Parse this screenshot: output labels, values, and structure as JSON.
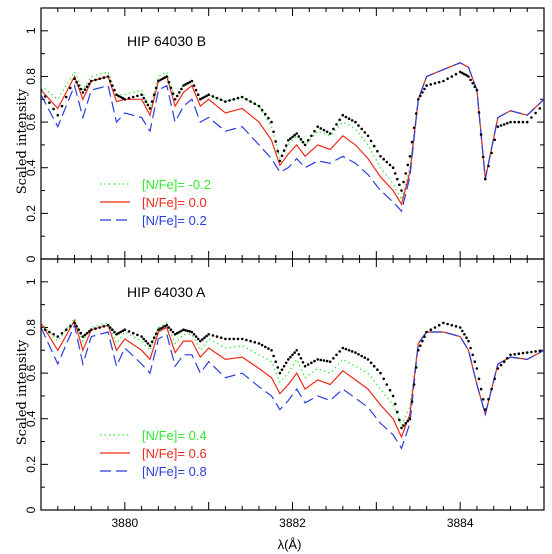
{
  "chart_data": [
    {
      "type": "line",
      "title": "HIP 64030 B",
      "xlabel": "",
      "ylabel": "Scaled intensity",
      "xlim": [
        3879.0,
        3885.0
      ],
      "ylim": [
        0.0,
        1.1
      ],
      "xticks": [],
      "yticks": [
        "0",
        "0.2",
        "0.4",
        "0.6",
        "0.8",
        "1"
      ],
      "legend_position": "lower-left",
      "observed": {
        "style": "dotted",
        "color": "#000000",
        "x": [
          3879.0,
          3879.2,
          3879.4,
          3879.5,
          3879.6,
          3879.8,
          3879.9,
          3880.0,
          3880.2,
          3880.3,
          3880.4,
          3880.5,
          3880.6,
          3880.7,
          3880.8,
          3880.9,
          3881.0,
          3881.2,
          3881.4,
          3881.6,
          3881.75,
          3881.85,
          3881.95,
          3882.05,
          3882.15,
          3882.3,
          3882.45,
          3882.6,
          3882.75,
          3882.9,
          3883.05,
          3883.2,
          3883.3,
          3883.4,
          3883.5,
          3883.6,
          3883.8,
          3884.0,
          3884.1,
          3884.2,
          3884.3,
          3884.45,
          3884.6,
          3884.8,
          3885.0
        ],
        "y": [
          0.74,
          0.63,
          0.79,
          0.73,
          0.78,
          0.8,
          0.72,
          0.7,
          0.72,
          0.66,
          0.78,
          0.8,
          0.7,
          0.76,
          0.78,
          0.7,
          0.72,
          0.69,
          0.71,
          0.67,
          0.6,
          0.43,
          0.52,
          0.55,
          0.5,
          0.58,
          0.55,
          0.63,
          0.6,
          0.54,
          0.45,
          0.4,
          0.3,
          0.45,
          0.7,
          0.76,
          0.78,
          0.82,
          0.8,
          0.74,
          0.35,
          0.58,
          0.6,
          0.6,
          0.68
        ]
      },
      "series": [
        {
          "name": "[N/Fe]= -0.2",
          "style": "dotted",
          "color": "#33e833",
          "x": [
            3879.0,
            3879.2,
            3879.4,
            3879.5,
            3879.6,
            3879.8,
            3879.9,
            3880.0,
            3880.2,
            3880.3,
            3880.4,
            3880.5,
            3880.6,
            3880.7,
            3880.8,
            3880.9,
            3881.0,
            3881.2,
            3881.4,
            3881.6,
            3881.75,
            3881.85,
            3881.95,
            3882.05,
            3882.15,
            3882.3,
            3882.45,
            3882.6,
            3882.75,
            3882.9,
            3883.05,
            3883.2,
            3883.3,
            3883.4,
            3883.5,
            3883.6,
            3883.8,
            3884.0,
            3884.1,
            3884.2,
            3884.3,
            3884.45,
            3884.6,
            3884.8,
            3885.0
          ],
          "y": [
            0.76,
            0.7,
            0.82,
            0.74,
            0.8,
            0.82,
            0.72,
            0.72,
            0.74,
            0.66,
            0.8,
            0.82,
            0.7,
            0.76,
            0.78,
            0.7,
            0.72,
            0.69,
            0.71,
            0.67,
            0.58,
            0.44,
            0.5,
            0.54,
            0.5,
            0.56,
            0.54,
            0.6,
            0.57,
            0.5,
            0.4,
            0.33,
            0.26,
            0.4,
            0.7,
            0.8,
            0.83,
            0.86,
            0.84,
            0.74,
            0.36,
            0.62,
            0.65,
            0.63,
            0.7
          ]
        },
        {
          "name": "[N/Fe]= 0.0",
          "style": "solid",
          "color": "#ee2a1a",
          "x": [
            3879.0,
            3879.2,
            3879.4,
            3879.5,
            3879.6,
            3879.8,
            3879.9,
            3880.0,
            3880.2,
            3880.3,
            3880.4,
            3880.5,
            3880.6,
            3880.7,
            3880.8,
            3880.9,
            3881.0,
            3881.2,
            3881.4,
            3881.6,
            3881.75,
            3881.85,
            3881.95,
            3882.05,
            3882.15,
            3882.3,
            3882.45,
            3882.6,
            3882.75,
            3882.9,
            3883.05,
            3883.2,
            3883.3,
            3883.4,
            3883.5,
            3883.6,
            3883.8,
            3884.0,
            3884.1,
            3884.2,
            3884.3,
            3884.45,
            3884.6,
            3884.8,
            3885.0
          ],
          "y": [
            0.74,
            0.66,
            0.8,
            0.7,
            0.78,
            0.8,
            0.69,
            0.7,
            0.7,
            0.63,
            0.78,
            0.8,
            0.67,
            0.73,
            0.76,
            0.67,
            0.7,
            0.64,
            0.66,
            0.6,
            0.52,
            0.41,
            0.46,
            0.5,
            0.45,
            0.5,
            0.48,
            0.54,
            0.5,
            0.44,
            0.36,
            0.3,
            0.24,
            0.38,
            0.7,
            0.8,
            0.83,
            0.86,
            0.84,
            0.74,
            0.35,
            0.62,
            0.65,
            0.63,
            0.7
          ]
        },
        {
          "name": "[N/Fe]= 0.2",
          "style": "dashed",
          "color": "#2a3ee0",
          "x": [
            3879.0,
            3879.2,
            3879.4,
            3879.5,
            3879.6,
            3879.8,
            3879.9,
            3880.0,
            3880.2,
            3880.3,
            3880.4,
            3880.5,
            3880.6,
            3880.7,
            3880.8,
            3880.9,
            3881.0,
            3881.2,
            3881.4,
            3881.6,
            3881.75,
            3881.85,
            3881.95,
            3882.05,
            3882.15,
            3882.3,
            3882.45,
            3882.6,
            3882.75,
            3882.9,
            3883.05,
            3883.2,
            3883.3,
            3883.4,
            3883.5,
            3883.6,
            3883.8,
            3884.0,
            3884.1,
            3884.2,
            3884.3,
            3884.45,
            3884.6,
            3884.8,
            3885.0
          ],
          "y": [
            0.72,
            0.58,
            0.76,
            0.62,
            0.74,
            0.76,
            0.6,
            0.64,
            0.62,
            0.56,
            0.74,
            0.76,
            0.6,
            0.67,
            0.7,
            0.6,
            0.62,
            0.56,
            0.58,
            0.5,
            0.44,
            0.38,
            0.4,
            0.44,
            0.4,
            0.43,
            0.42,
            0.45,
            0.42,
            0.37,
            0.3,
            0.25,
            0.21,
            0.36,
            0.7,
            0.8,
            0.83,
            0.86,
            0.84,
            0.74,
            0.35,
            0.62,
            0.65,
            0.63,
            0.7
          ]
        }
      ]
    },
    {
      "type": "line",
      "title": "HIP 64030 A",
      "xlabel": "λ(Å)",
      "ylabel": "Scaled intensity",
      "xlim": [
        3879.0,
        3885.0
      ],
      "ylim": [
        0.0,
        1.1
      ],
      "xticks": [
        "3880",
        "3882",
        "3884"
      ],
      "yticks": [
        "0",
        "0.2",
        "0.4",
        "0.6",
        "0.8",
        "1"
      ],
      "legend_position": "lower-left",
      "observed": {
        "style": "dotted",
        "color": "#000000",
        "x": [
          3879.0,
          3879.2,
          3879.4,
          3879.5,
          3879.6,
          3879.8,
          3879.9,
          3880.0,
          3880.2,
          3880.3,
          3880.4,
          3880.5,
          3880.6,
          3880.7,
          3880.8,
          3880.9,
          3881.0,
          3881.2,
          3881.4,
          3881.6,
          3881.75,
          3881.85,
          3881.95,
          3882.05,
          3882.15,
          3882.3,
          3882.45,
          3882.6,
          3882.75,
          3882.9,
          3883.05,
          3883.2,
          3883.3,
          3883.4,
          3883.5,
          3883.6,
          3883.8,
          3884.0,
          3884.1,
          3884.2,
          3884.3,
          3884.45,
          3884.6,
          3884.8,
          3885.0
        ],
        "y": [
          0.8,
          0.76,
          0.82,
          0.76,
          0.79,
          0.81,
          0.77,
          0.79,
          0.76,
          0.72,
          0.79,
          0.81,
          0.77,
          0.79,
          0.78,
          0.74,
          0.77,
          0.75,
          0.75,
          0.73,
          0.7,
          0.6,
          0.66,
          0.7,
          0.63,
          0.66,
          0.65,
          0.71,
          0.69,
          0.66,
          0.6,
          0.5,
          0.36,
          0.4,
          0.7,
          0.78,
          0.82,
          0.8,
          0.74,
          0.62,
          0.44,
          0.62,
          0.68,
          0.69,
          0.7
        ]
      },
      "series": [
        {
          "name": "[N/Fe]= 0.4",
          "style": "dotted",
          "color": "#33e833",
          "x": [
            3879.0,
            3879.2,
            3879.4,
            3879.5,
            3879.6,
            3879.8,
            3879.9,
            3880.0,
            3880.2,
            3880.3,
            3880.4,
            3880.5,
            3880.6,
            3880.7,
            3880.8,
            3880.9,
            3881.0,
            3881.2,
            3881.4,
            3881.6,
            3881.75,
            3881.85,
            3881.95,
            3882.05,
            3882.15,
            3882.3,
            3882.45,
            3882.6,
            3882.75,
            3882.9,
            3883.05,
            3883.2,
            3883.3,
            3883.4,
            3883.5,
            3883.6,
            3883.8,
            3884.0,
            3884.1,
            3884.2,
            3884.3,
            3884.45,
            3884.6,
            3884.8,
            3885.0
          ],
          "y": [
            0.82,
            0.74,
            0.84,
            0.74,
            0.8,
            0.82,
            0.73,
            0.78,
            0.74,
            0.7,
            0.8,
            0.82,
            0.73,
            0.77,
            0.77,
            0.7,
            0.75,
            0.71,
            0.72,
            0.68,
            0.65,
            0.56,
            0.6,
            0.66,
            0.58,
            0.62,
            0.6,
            0.66,
            0.63,
            0.6,
            0.53,
            0.46,
            0.37,
            0.45,
            0.73,
            0.78,
            0.78,
            0.76,
            0.7,
            0.55,
            0.42,
            0.64,
            0.67,
            0.66,
            0.7
          ]
        },
        {
          "name": "[N/Fe]= 0.6",
          "style": "solid",
          "color": "#ee2a1a",
          "x": [
            3879.0,
            3879.2,
            3879.4,
            3879.5,
            3879.6,
            3879.8,
            3879.9,
            3880.0,
            3880.2,
            3880.3,
            3880.4,
            3880.5,
            3880.6,
            3880.7,
            3880.8,
            3880.9,
            3881.0,
            3881.2,
            3881.4,
            3881.6,
            3881.75,
            3881.85,
            3881.95,
            3882.05,
            3882.15,
            3882.3,
            3882.45,
            3882.6,
            3882.75,
            3882.9,
            3883.05,
            3883.2,
            3883.3,
            3883.4,
            3883.5,
            3883.6,
            3883.8,
            3884.0,
            3884.1,
            3884.2,
            3884.3,
            3884.45,
            3884.6,
            3884.8,
            3885.0
          ],
          "y": [
            0.82,
            0.7,
            0.83,
            0.7,
            0.79,
            0.81,
            0.7,
            0.75,
            0.7,
            0.66,
            0.78,
            0.8,
            0.69,
            0.74,
            0.74,
            0.67,
            0.71,
            0.66,
            0.67,
            0.62,
            0.58,
            0.51,
            0.55,
            0.6,
            0.53,
            0.57,
            0.55,
            0.61,
            0.57,
            0.53,
            0.46,
            0.4,
            0.32,
            0.42,
            0.73,
            0.78,
            0.78,
            0.76,
            0.7,
            0.55,
            0.42,
            0.64,
            0.67,
            0.66,
            0.7
          ]
        },
        {
          "name": "[N/Fe]= 0.8",
          "style": "dashed",
          "color": "#2a3ee0",
          "x": [
            3879.0,
            3879.2,
            3879.4,
            3879.5,
            3879.6,
            3879.8,
            3879.9,
            3880.0,
            3880.2,
            3880.3,
            3880.4,
            3880.5,
            3880.6,
            3880.7,
            3880.8,
            3880.9,
            3881.0,
            3881.2,
            3881.4,
            3881.6,
            3881.75,
            3881.85,
            3881.95,
            3882.05,
            3882.15,
            3882.3,
            3882.45,
            3882.6,
            3882.75,
            3882.9,
            3883.05,
            3883.2,
            3883.3,
            3883.4,
            3883.5,
            3883.6,
            3883.8,
            3884.0,
            3884.1,
            3884.2,
            3884.3,
            3884.45,
            3884.6,
            3884.8,
            3885.0
          ],
          "y": [
            0.8,
            0.64,
            0.81,
            0.64,
            0.76,
            0.78,
            0.63,
            0.71,
            0.64,
            0.6,
            0.75,
            0.77,
            0.63,
            0.68,
            0.68,
            0.6,
            0.65,
            0.58,
            0.6,
            0.54,
            0.5,
            0.44,
            0.48,
            0.53,
            0.47,
            0.5,
            0.48,
            0.53,
            0.49,
            0.45,
            0.38,
            0.33,
            0.27,
            0.38,
            0.73,
            0.78,
            0.78,
            0.76,
            0.7,
            0.55,
            0.42,
            0.64,
            0.67,
            0.66,
            0.7
          ]
        }
      ]
    }
  ]
}
